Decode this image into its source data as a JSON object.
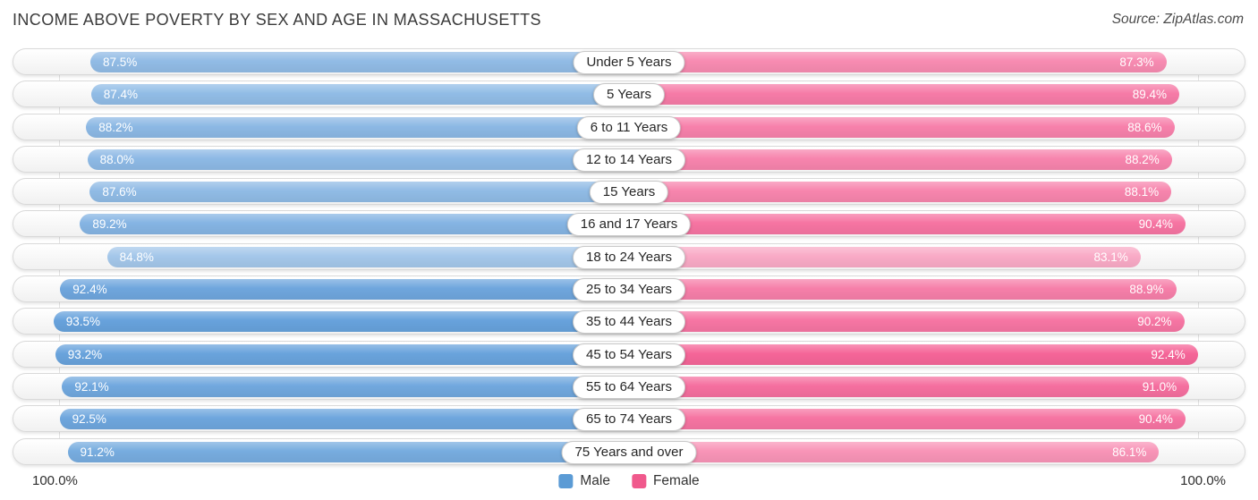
{
  "title": "INCOME ABOVE POVERTY BY SEX AND AGE IN MASSACHUSETTS",
  "source": "Source: ZipAtlas.com",
  "legend": {
    "male_label": "Male",
    "female_label": "Female"
  },
  "axis": {
    "left_max_label": "100.0%",
    "right_max_label": "100.0%"
  },
  "colors": {
    "male_base": "#4a90d5",
    "female_base": "#f23e7e",
    "male_legend": "#5b9bd5",
    "female_legend": "#f0598c",
    "track_border": "#d9d9d9",
    "gridline": "#e3e3e3"
  },
  "chart_data": {
    "type": "bar",
    "variant": "diverging-horizontal",
    "title": "Income Above Poverty by Sex and Age in Massachusetts",
    "categories": [
      "Under 5 Years",
      "5 Years",
      "6 to 11 Years",
      "12 to 14 Years",
      "15 Years",
      "16 and 17 Years",
      "18 to 24 Years",
      "25 to 34 Years",
      "35 to 44 Years",
      "45 to 54 Years",
      "55 to 64 Years",
      "65 to 74 Years",
      "75 Years and over"
    ],
    "series": [
      {
        "name": "Male",
        "values": [
          87.5,
          87.4,
          88.2,
          88.0,
          87.6,
          89.2,
          84.8,
          92.4,
          93.5,
          93.2,
          92.1,
          92.5,
          91.2
        ]
      },
      {
        "name": "Female",
        "values": [
          87.3,
          89.4,
          88.6,
          88.2,
          88.1,
          90.4,
          83.1,
          88.9,
          90.2,
          92.4,
          91.0,
          90.4,
          86.1
        ]
      }
    ],
    "xlim": [
      0,
      100
    ],
    "value_suffix": "%",
    "legend_position": "bottom-center"
  }
}
